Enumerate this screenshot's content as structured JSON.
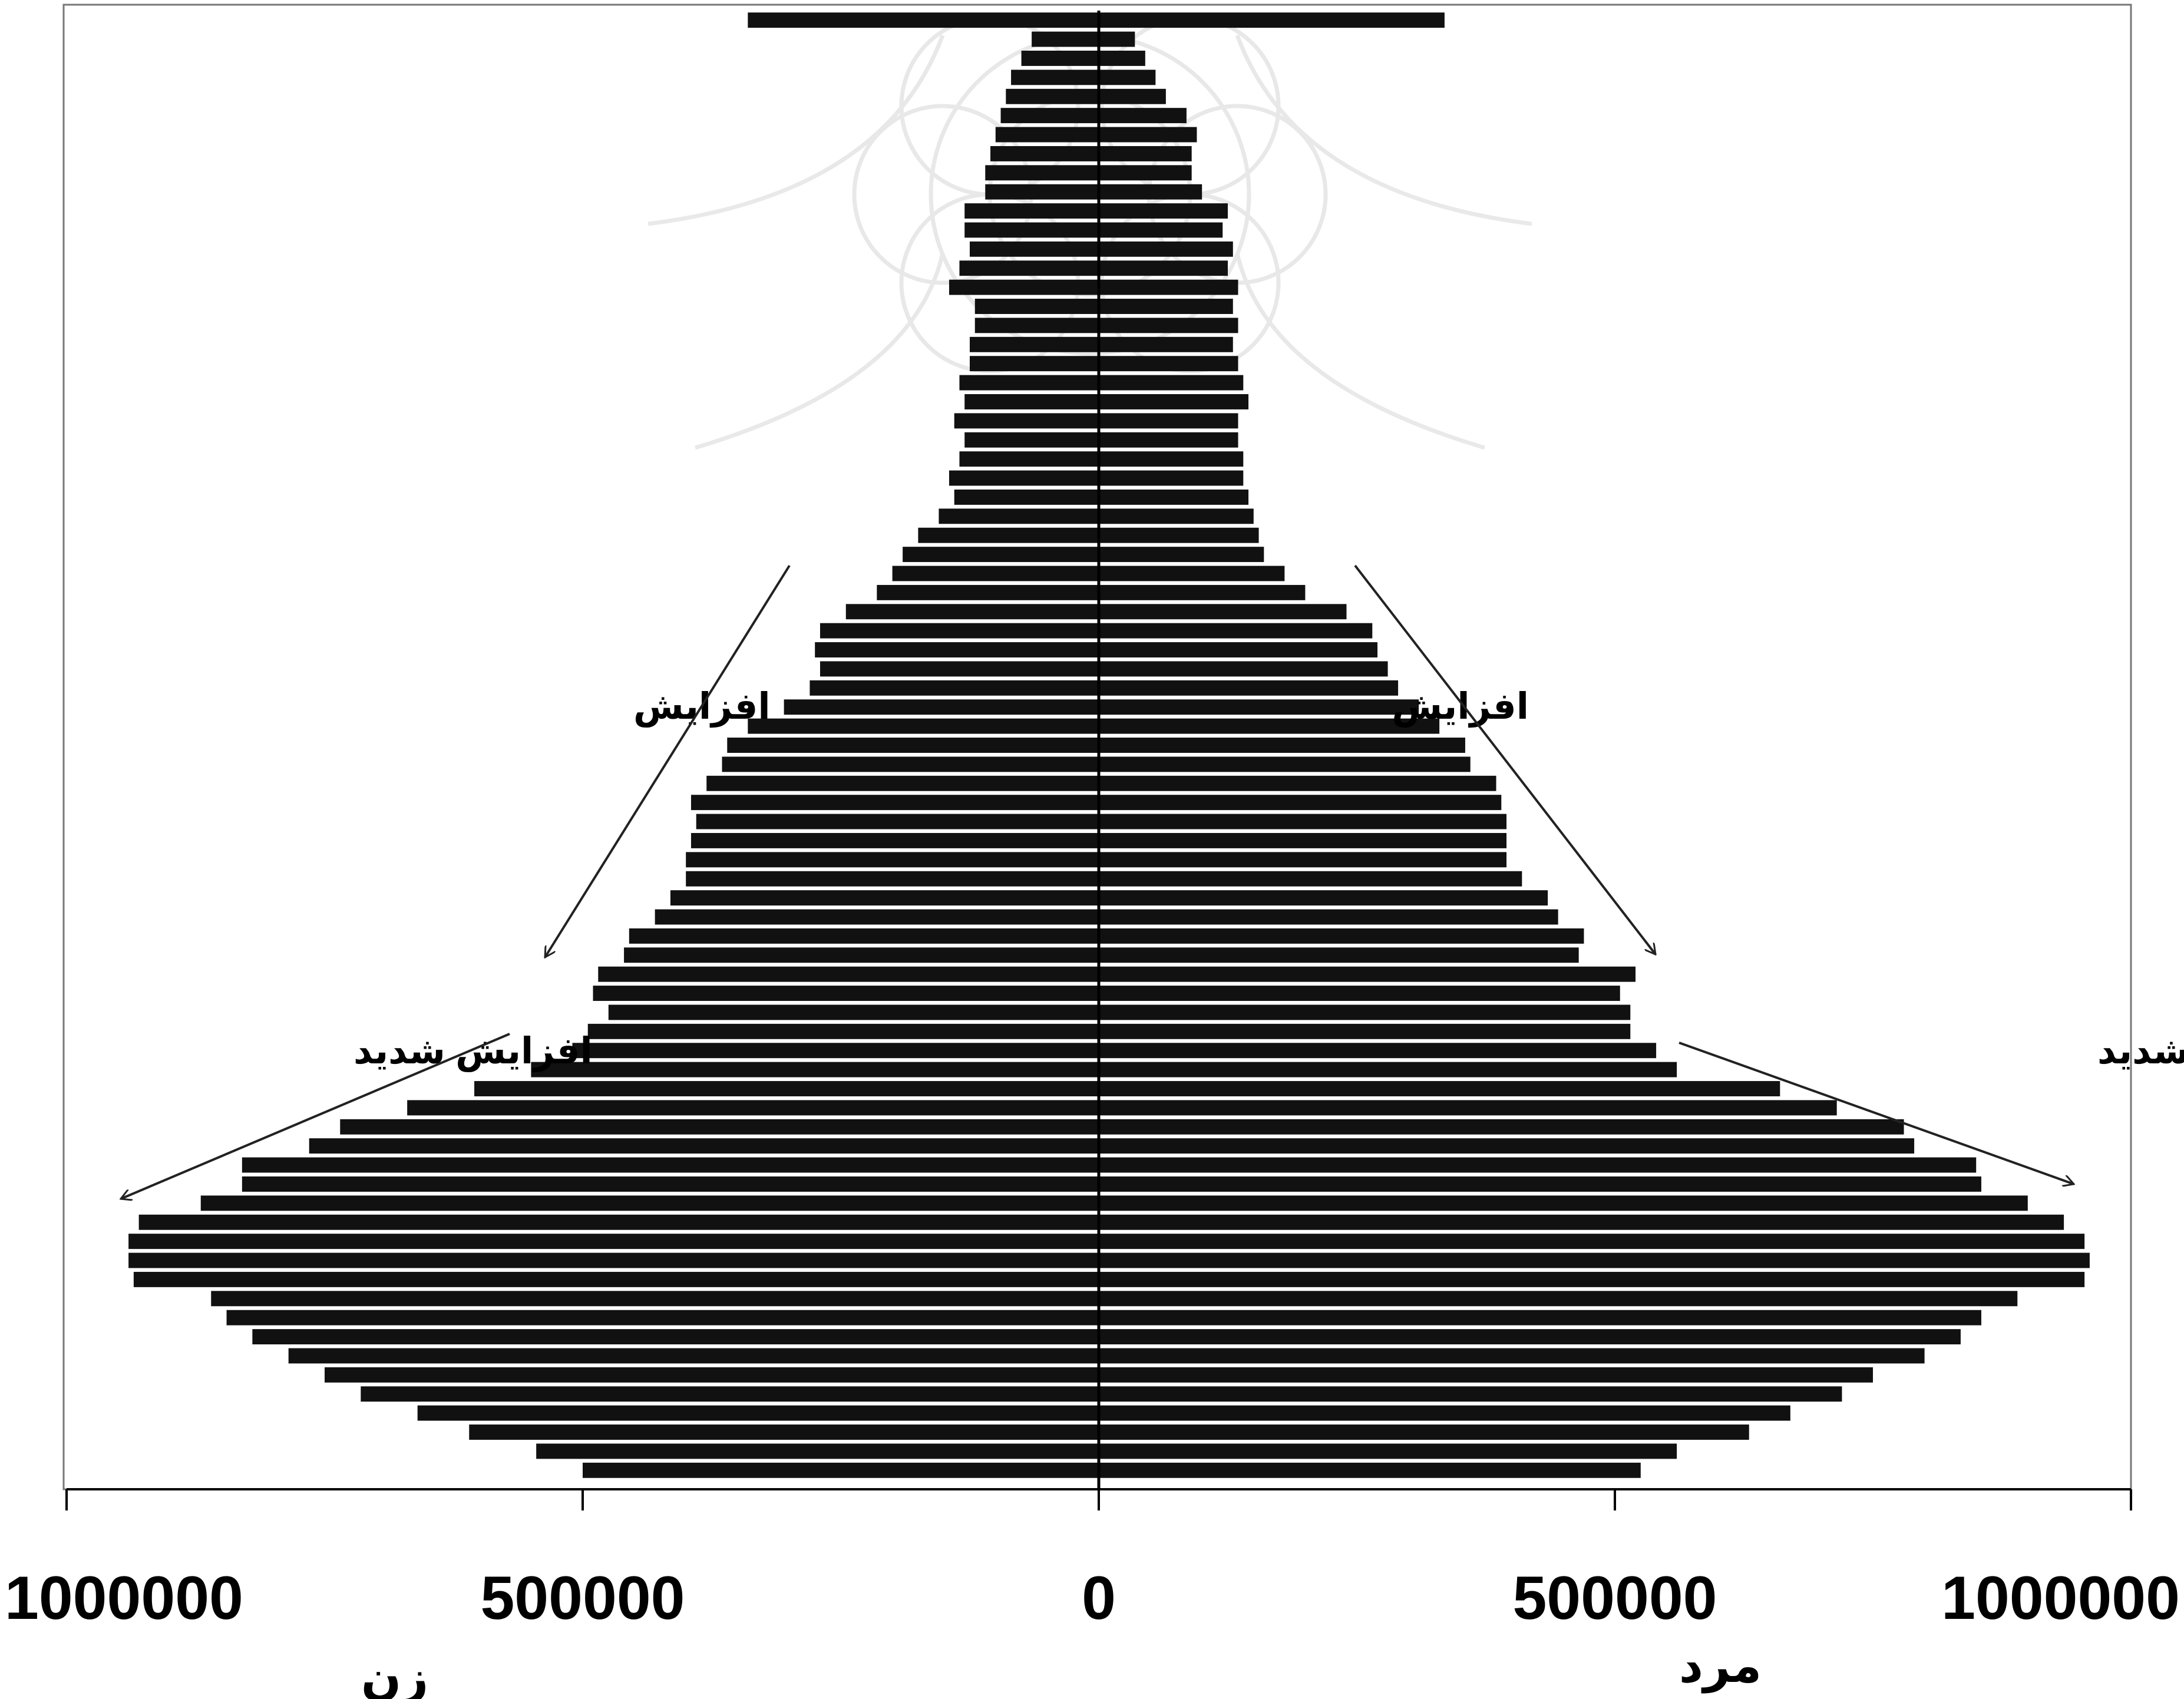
{
  "chart_data": {
    "type": "bar",
    "orientation": "horizontal",
    "style": "population-pyramid",
    "title": "",
    "xlabel": "",
    "ylabel": "",
    "xlim": [
      -1000000,
      1000000
    ],
    "x_ticks": [
      -1000000,
      -500000,
      0,
      500000,
      1000000
    ],
    "x_tick_labels": [
      "1000000",
      "500000",
      "0",
      "500000",
      "1000000"
    ],
    "side_labels": {
      "left": "زن",
      "right": "مرد"
    },
    "grid": false,
    "legend": "none",
    "bar_color": "#111111",
    "rows_order": "bottom-to-top (youngest age at bottom)",
    "series": [
      {
        "name": "زن",
        "side": "left",
        "values": [
          500000,
          545000,
          610000,
          660000,
          715000,
          750000,
          785000,
          820000,
          845000,
          860000,
          935000,
          940000,
          940000,
          930000,
          870000,
          830000,
          830000,
          765000,
          735000,
          670000,
          605000,
          550000,
          510000,
          495000,
          475000,
          490000,
          485000,
          460000,
          455000,
          430000,
          415000,
          400000,
          400000,
          395000,
          390000,
          395000,
          380000,
          365000,
          360000,
          340000,
          305000,
          280000,
          270000,
          275000,
          270000,
          245000,
          215000,
          200000,
          190000,
          175000,
          155000,
          140000,
          145000,
          135000,
          130000,
          140000,
          130000,
          135000,
          125000,
          125000,
          120000,
          120000,
          145000,
          135000,
          125000,
          130000,
          130000,
          110000,
          110000,
          105000,
          100000,
          95000,
          90000,
          85000,
          75000,
          65000,
          340000
        ]
      },
      {
        "name": "مرد",
        "side": "right",
        "values": [
          525000,
          560000,
          630000,
          670000,
          720000,
          750000,
          800000,
          835000,
          855000,
          890000,
          955000,
          960000,
          955000,
          935000,
          900000,
          855000,
          850000,
          790000,
          780000,
          715000,
          660000,
          560000,
          540000,
          515000,
          515000,
          505000,
          520000,
          465000,
          470000,
          445000,
          435000,
          410000,
          395000,
          395000,
          395000,
          390000,
          385000,
          360000,
          355000,
          330000,
          310000,
          290000,
          280000,
          270000,
          265000,
          240000,
          200000,
          180000,
          160000,
          155000,
          150000,
          145000,
          140000,
          140000,
          135000,
          135000,
          145000,
          140000,
          135000,
          130000,
          135000,
          130000,
          135000,
          125000,
          130000,
          120000,
          125000,
          100000,
          90000,
          90000,
          95000,
          85000,
          65000,
          55000,
          45000,
          35000,
          335000
        ]
      }
    ],
    "annotations": [
      {
        "text": "افزایش",
        "side": "left",
        "arrow_toward": "lower-left"
      },
      {
        "text": "افزایش",
        "side": "right",
        "arrow_toward": "lower-right"
      },
      {
        "text": "افزایش شدید",
        "side": "left",
        "arrow_toward": "left"
      },
      {
        "text": "افزایش شدید",
        "side": "right",
        "arrow_toward": "right"
      }
    ]
  }
}
